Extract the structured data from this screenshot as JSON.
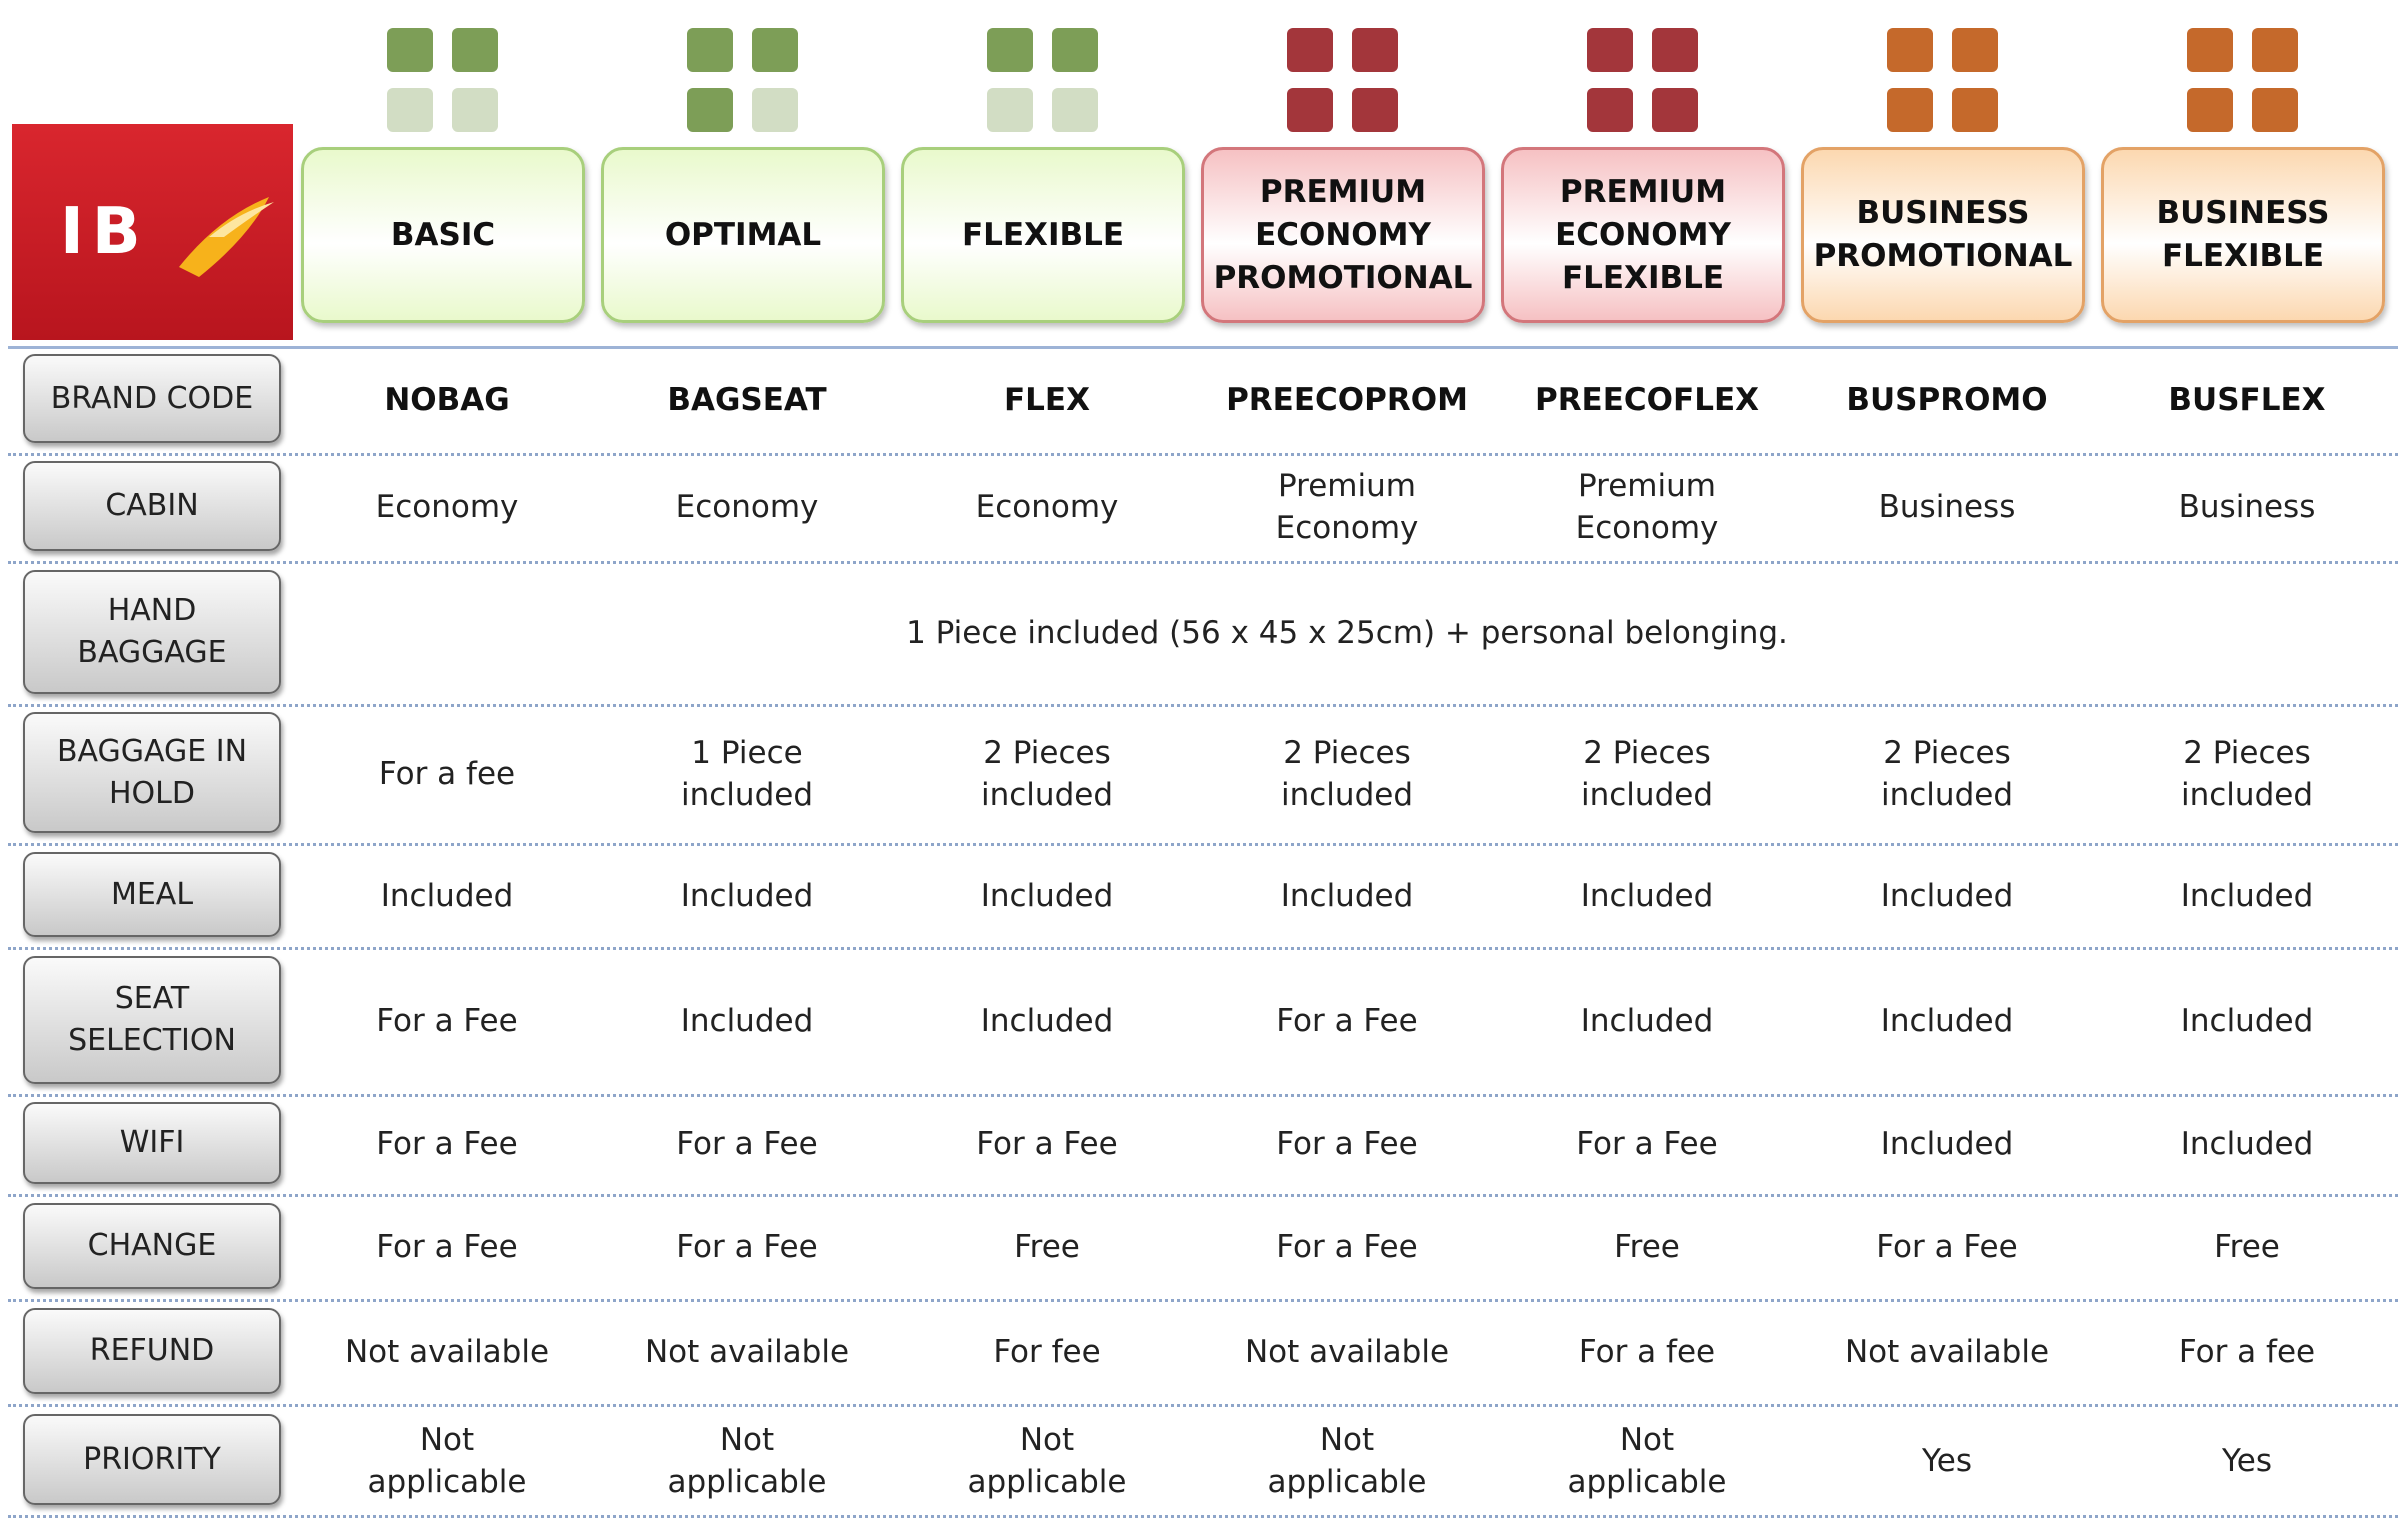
{
  "logo": "IB",
  "fares": [
    {
      "name": "BASIC",
      "color": "#e9f9cc",
      "border": "#a8cf7c",
      "icon": "#7d9e57"
    },
    {
      "name": "OPTIMAL",
      "color": "#e9f9cc",
      "border": "#a8cf7c",
      "icon": "#7d9e57"
    },
    {
      "name": "FLEXIBLE",
      "color": "#e9f9cc",
      "border": "#a8cf7c",
      "icon": "#7d9e57"
    },
    {
      "name": "PREMIUM\nECONOMY\nPROMOTIONAL",
      "color": "#f6c1c3",
      "border": "#d3767b",
      "icon": "#a3363b"
    },
    {
      "name": "PREMIUM\nECONOMY\nFLEXIBLE",
      "color": "#f6c1c3",
      "border": "#d3767b",
      "icon": "#a3363b"
    },
    {
      "name": "BUSINESS\nPROMOTIONAL",
      "color": "#fcd8b0",
      "border": "#e3a266",
      "icon": "#c5692b"
    },
    {
      "name": "BUSINESS\nFLEXIBLE",
      "color": "#fcd8b0",
      "border": "#e3a266",
      "icon": "#c5692b"
    }
  ],
  "rows": [
    {
      "label": "BRAND CODE",
      "cells": [
        "NOBAG",
        "BAGSEAT",
        "FLEX",
        "PREECOPROM",
        "PREECOFLEX",
        "BUSPROMO",
        "BUSFLEX"
      ]
    },
    {
      "label": "CABIN",
      "cells": [
        "Economy",
        "Economy",
        "Economy",
        "Premium\nEconomy",
        "Premium\nEconomy",
        "Business",
        "Business"
      ]
    },
    {
      "label": "HAND\nBAGGAGE",
      "cells": [
        "1 Piece included (56 x 45 x 25cm) +  personal belonging."
      ]
    },
    {
      "label": "BAGGAGE IN\nHOLD",
      "cells": [
        "For a fee",
        "1 Piece\nincluded",
        "2 Pieces\nincluded",
        "2 Pieces\nincluded",
        "2 Pieces\nincluded",
        "2 Pieces\nincluded",
        "2 Pieces\nincluded"
      ]
    },
    {
      "label": "MEAL",
      "cells": [
        "Included",
        "Included",
        "Included",
        "Included",
        "Included",
        "Included",
        "Included"
      ]
    },
    {
      "label": "SEAT\nSELECTION",
      "cells": [
        "For a Fee",
        "Included",
        "Included",
        "For a Fee",
        "Included",
        "Included",
        "Included"
      ]
    },
    {
      "label": "WIFI",
      "cells": [
        "For a Fee",
        "For a Fee",
        "For a Fee",
        "For a Fee",
        "For a Fee",
        "Included",
        "Included"
      ]
    },
    {
      "label": "CHANGE",
      "cells": [
        "For a Fee",
        "For a Fee",
        "Free",
        "For a Fee",
        "Free",
        "For a Fee",
        "Free"
      ]
    },
    {
      "label": "REFUND",
      "cells": [
        "Not available",
        "Not available",
        "For fee",
        "Not available",
        "For a fee",
        "Not available",
        "For a fee"
      ]
    },
    {
      "label": "PRIORITY",
      "cells": [
        "Not\napplicable",
        "Not\napplicable",
        "Not\napplicable",
        "Not\napplicable",
        "Not\napplicable",
        "Yes",
        "Yes"
      ]
    }
  ]
}
